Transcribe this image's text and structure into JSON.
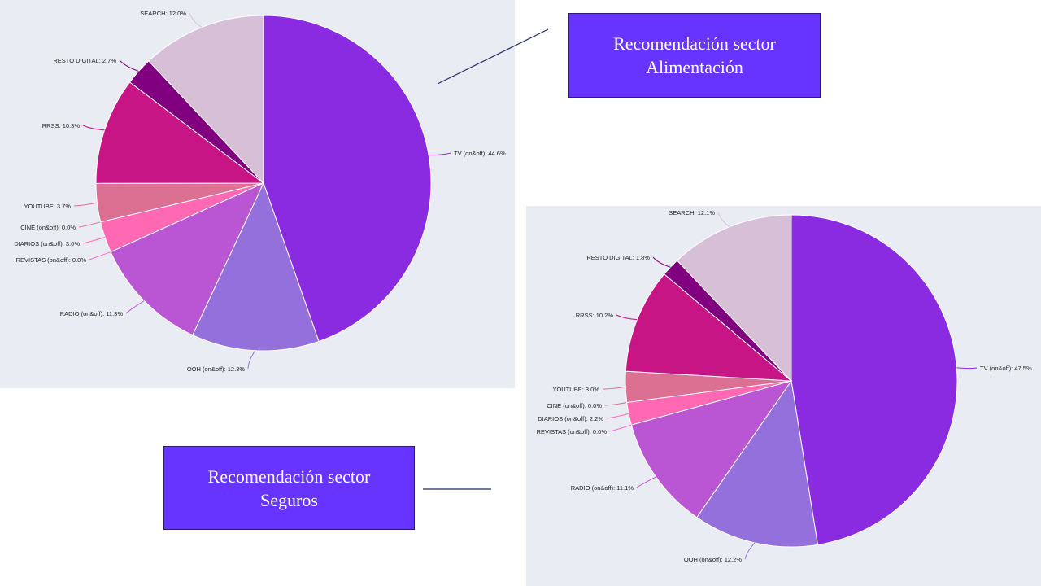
{
  "chart_data": [
    {
      "type": "pie",
      "categories": [
        "TV (on&off)",
        "OOH (on&off)",
        "RADIO (on&off)",
        "REVISTAS (on&off)",
        "DIARIOS (on&off)",
        "CINE (on&off)",
        "YOUTUBE",
        "RRSS",
        "RESTO DIGITAL",
        "SEARCH"
      ],
      "values": [
        44.6,
        12.3,
        11.3,
        0.0,
        3.0,
        0.0,
        3.7,
        10.3,
        2.7,
        12.0
      ],
      "labels": [
        "TV (on&off): 44.6%",
        "OOH (on&off): 12.3%",
        "RADIO (on&off): 11.3%",
        "REVISTAS (on&off): 0.0%",
        "DIARIOS (on&off): 3.0%",
        "CINE (on&off): 0.0%",
        "YOUTUBE: 3.7%",
        "RRSS: 10.3%",
        "RESTO DIGITAL: 2.7%",
        "SEARCH: 12.0%"
      ],
      "colors": [
        "#8a2be2",
        "#9370db",
        "#ba55d3",
        "#ff66cc",
        "#ff69b4",
        "#db7093",
        "#db7093",
        "#c71585",
        "#800080",
        "#d8bfd8"
      ],
      "title": "Recomendación sector Alimentación",
      "title_lines": [
        "Recomendación sector",
        "Alimentación"
      ]
    },
    {
      "type": "pie",
      "categories": [
        "TV (on&off)",
        "OOH (on&off)",
        "RADIO (on&off)",
        "REVISTAS (on&off)",
        "DIARIOS (on&off)",
        "CINE (on&off)",
        "YOUTUBE",
        "RRSS",
        "RESTO DIGITAL",
        "SEARCH"
      ],
      "values": [
        47.5,
        12.2,
        11.1,
        0.0,
        2.2,
        0.0,
        3.0,
        10.2,
        1.8,
        12.1
      ],
      "labels": [
        "TV (on&off): 47.5%",
        "OOH (on&off): 12.2%",
        "RADIO (on&off): 11.1%",
        "REVISTAS (on&off): 0.0%",
        "DIARIOS (on&off): 2.2%",
        "CINE (on&off): 0.0%",
        "YOUTUBE: 3.0%",
        "RRSS: 10.2%",
        "RESTO DIGITAL: 1.8%",
        "SEARCH: 12.1%"
      ],
      "colors": [
        "#8a2be2",
        "#9370db",
        "#ba55d3",
        "#ff66cc",
        "#ff69b4",
        "#db7093",
        "#db7093",
        "#c71585",
        "#800080",
        "#d8bfd8"
      ],
      "title": "Recomendación sector Seguros",
      "title_lines": [
        "Recomendación sector",
        "Seguros"
      ]
    }
  ]
}
